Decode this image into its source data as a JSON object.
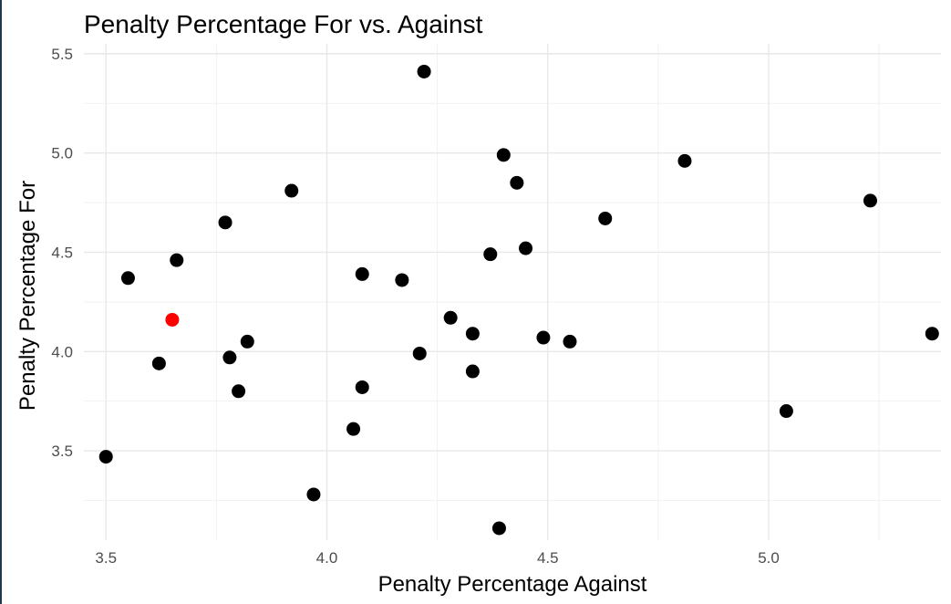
{
  "chart_data": {
    "type": "scatter",
    "title": "Penalty Percentage For vs. Against",
    "xlabel": "Penalty Percentage Against",
    "ylabel": "Penalty Percentage For",
    "xlim": [
      3.45,
      5.39
    ],
    "ylim": [
      3.05,
      5.55
    ],
    "x_ticks": [
      "3.5",
      "4.0",
      "4.5",
      "5.0"
    ],
    "y_ticks": [
      "3.5",
      "4.0",
      "4.5",
      "5.0",
      "5.5"
    ],
    "grid": true,
    "default_color": "#000000",
    "highlight_color": "#ff0000",
    "points": [
      {
        "x": 3.5,
        "y": 3.47
      },
      {
        "x": 3.55,
        "y": 4.37
      },
      {
        "x": 3.62,
        "y": 3.94
      },
      {
        "x": 3.65,
        "y": 4.16,
        "highlight": true
      },
      {
        "x": 3.66,
        "y": 4.46
      },
      {
        "x": 3.77,
        "y": 4.65
      },
      {
        "x": 3.78,
        "y": 3.97
      },
      {
        "x": 3.8,
        "y": 3.8
      },
      {
        "x": 3.82,
        "y": 4.05
      },
      {
        "x": 3.92,
        "y": 4.81
      },
      {
        "x": 3.97,
        "y": 3.28
      },
      {
        "x": 4.06,
        "y": 3.61
      },
      {
        "x": 4.08,
        "y": 4.39
      },
      {
        "x": 4.08,
        "y": 3.82
      },
      {
        "x": 4.17,
        "y": 4.36
      },
      {
        "x": 4.21,
        "y": 3.99
      },
      {
        "x": 4.22,
        "y": 5.41
      },
      {
        "x": 4.28,
        "y": 4.17
      },
      {
        "x": 4.33,
        "y": 4.09
      },
      {
        "x": 4.33,
        "y": 3.9
      },
      {
        "x": 4.37,
        "y": 4.49
      },
      {
        "x": 4.39,
        "y": 3.11
      },
      {
        "x": 4.4,
        "y": 4.99
      },
      {
        "x": 4.43,
        "y": 4.85
      },
      {
        "x": 4.45,
        "y": 4.52
      },
      {
        "x": 4.49,
        "y": 4.07
      },
      {
        "x": 4.55,
        "y": 4.05
      },
      {
        "x": 4.63,
        "y": 4.67
      },
      {
        "x": 4.81,
        "y": 4.96
      },
      {
        "x": 5.04,
        "y": 3.7
      },
      {
        "x": 5.23,
        "y": 4.76
      },
      {
        "x": 5.37,
        "y": 4.09
      }
    ]
  }
}
